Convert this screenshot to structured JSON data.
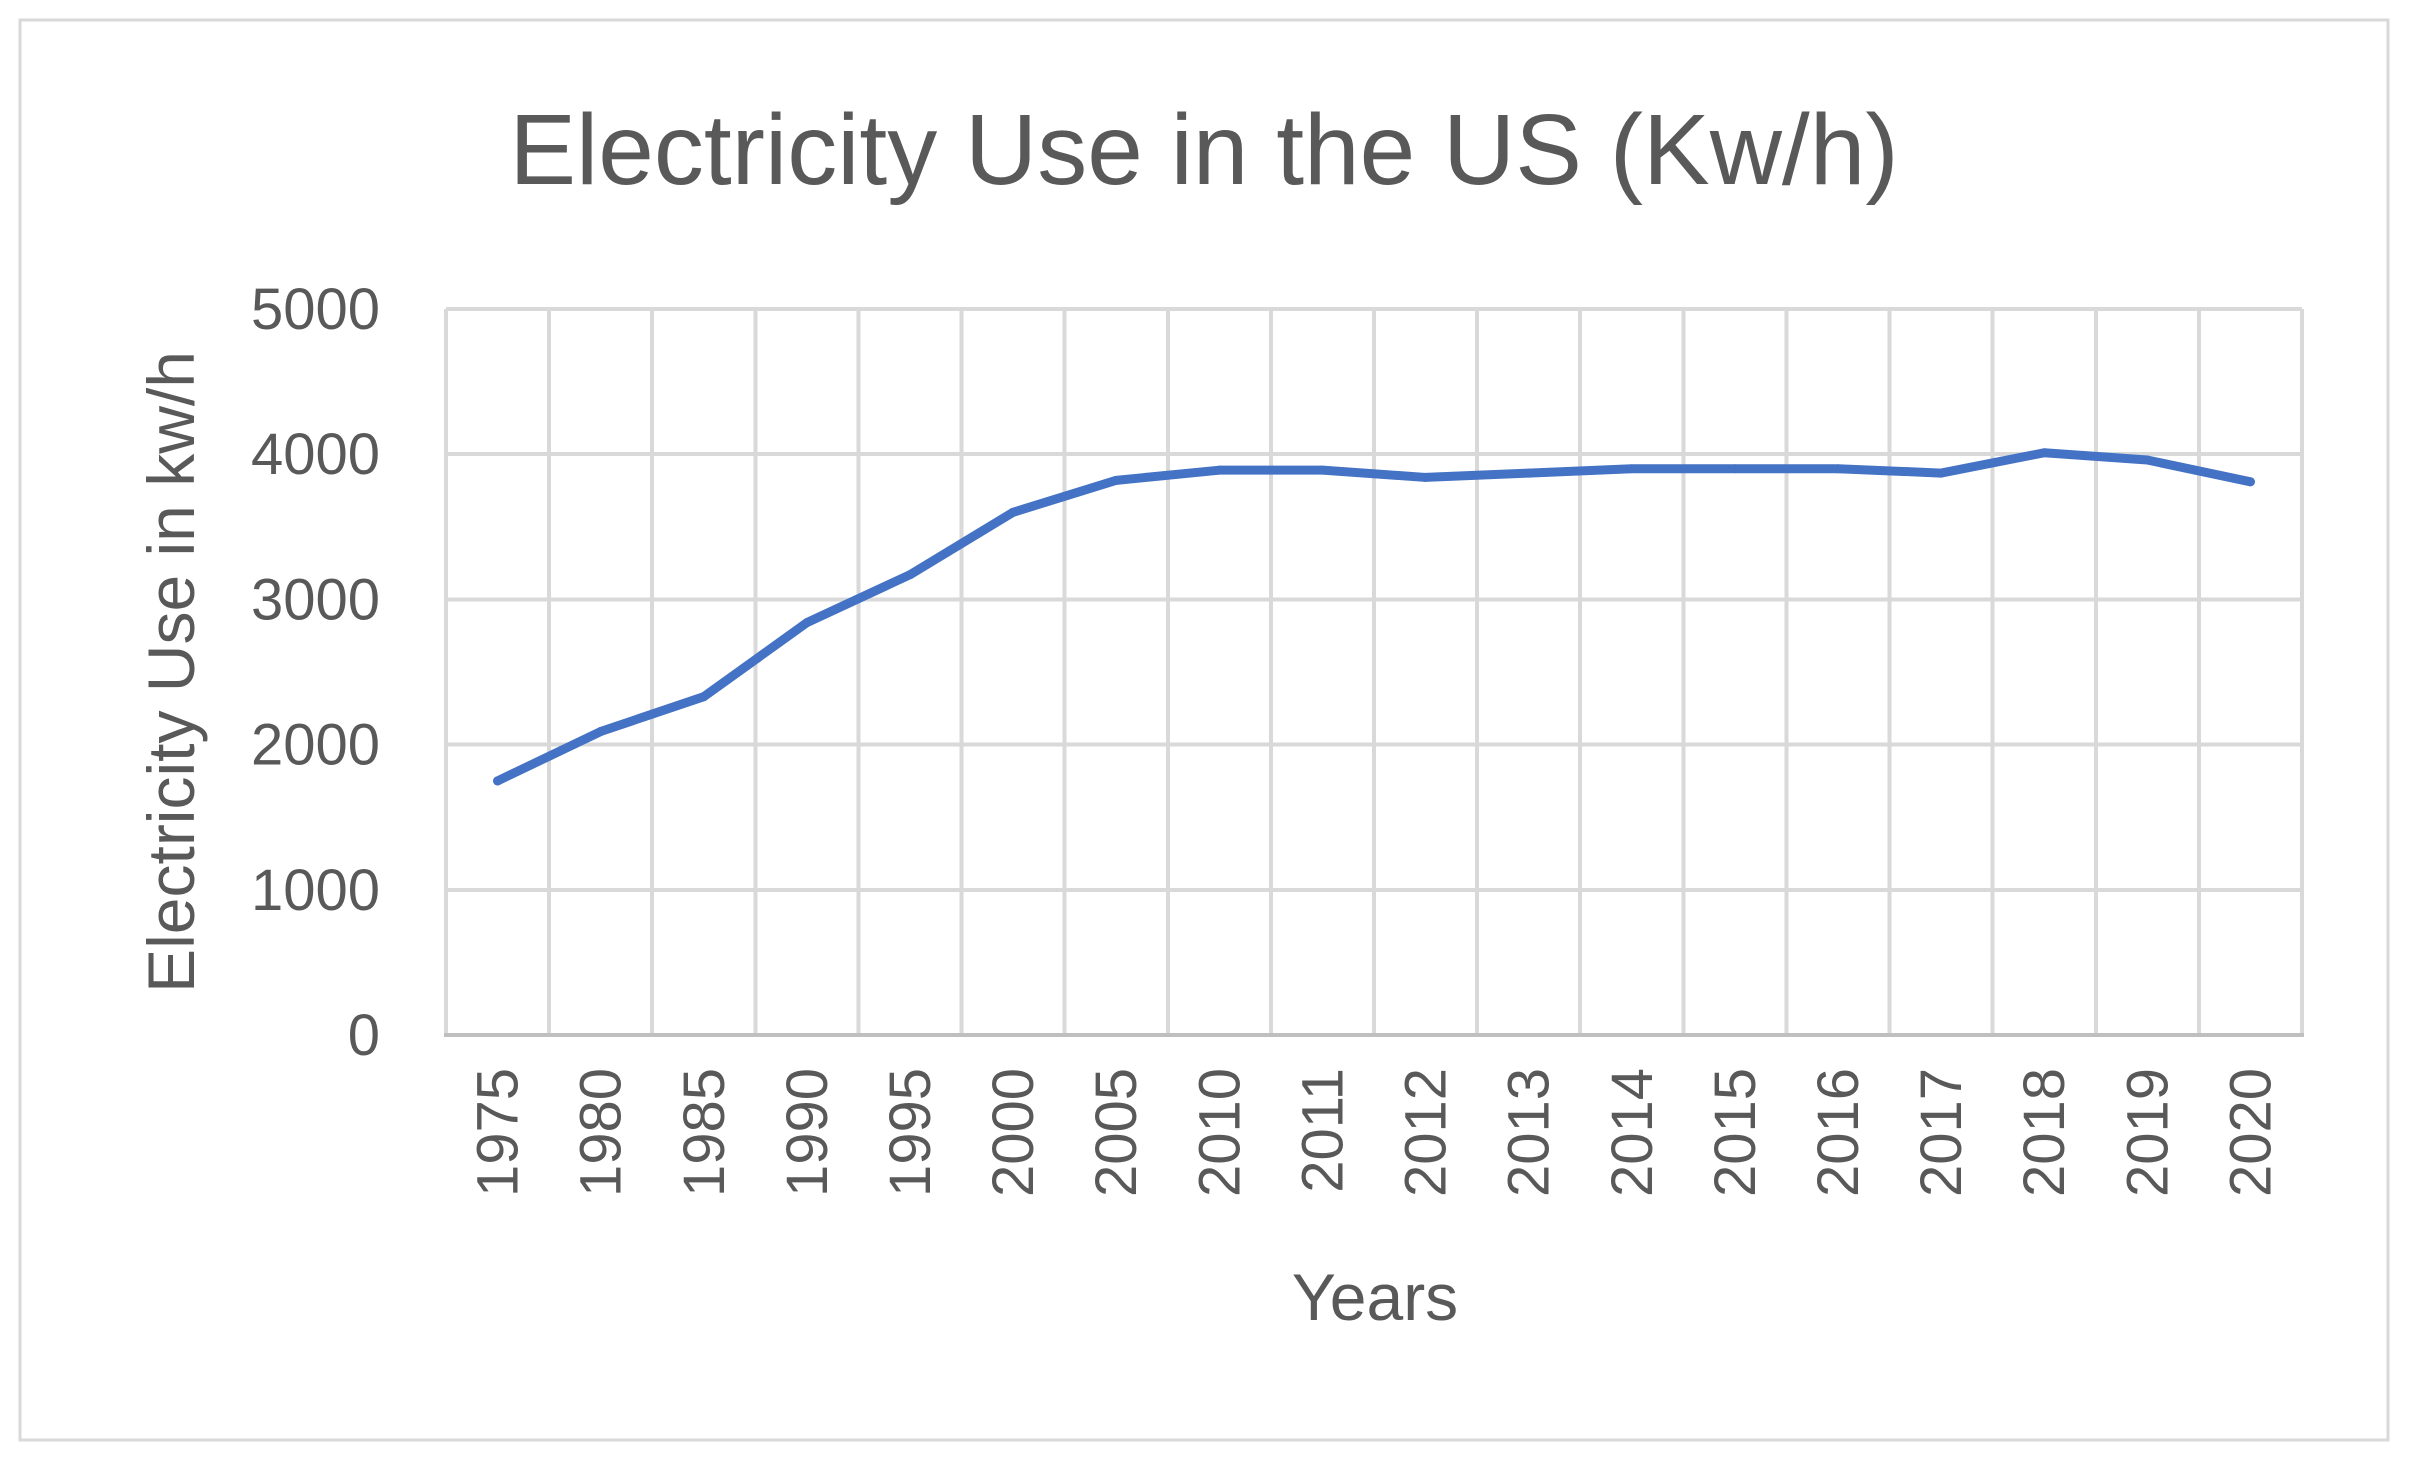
{
  "chart_data": {
    "type": "line",
    "title": "Electricity Use in the US (Kw/h)",
    "xlabel": "Years",
    "ylabel": "Electricity Use in kw/h",
    "categories": [
      "1975",
      "1980",
      "1985",
      "1990",
      "1995",
      "2000",
      "2005",
      "2010",
      "2011",
      "2012",
      "2013",
      "2014",
      "2015",
      "2016",
      "2017",
      "2018",
      "2019",
      "2020"
    ],
    "series": [
      {
        "name": "Electricity Use",
        "color": "#4472c4",
        "values": [
          1750,
          2090,
          2330,
          2840,
          3170,
          3600,
          3820,
          3890,
          3890,
          3840,
          3870,
          3900,
          3900,
          3900,
          3870,
          4010,
          3960,
          3810
        ]
      }
    ],
    "ylim": [
      0,
      5000
    ],
    "yticks": [
      0,
      1000,
      2000,
      3000,
      4000,
      5000
    ],
    "grid": true,
    "legend": "none"
  }
}
